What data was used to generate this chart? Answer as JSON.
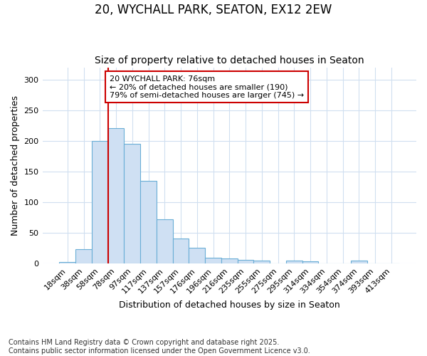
{
  "title": "20, WYCHALL PARK, SEATON, EX12 2EW",
  "subtitle": "Size of property relative to detached houses in Seaton",
  "xlabel": "Distribution of detached houses by size in Seaton",
  "ylabel": "Number of detached properties",
  "bins": [
    "18sqm",
    "38sqm",
    "58sqm",
    "78sqm",
    "97sqm",
    "117sqm",
    "137sqm",
    "157sqm",
    "176sqm",
    "196sqm",
    "216sqm",
    "235sqm",
    "255sqm",
    "275sqm",
    "295sqm",
    "314sqm",
    "334sqm",
    "354sqm",
    "374sqm",
    "393sqm",
    "413sqm"
  ],
  "bar_heights": [
    2,
    23,
    200,
    221,
    195,
    135,
    72,
    41,
    26,
    9,
    8,
    6,
    5,
    0,
    4,
    3,
    0,
    0,
    4,
    0,
    0
  ],
  "bar_color": "#cfe0f3",
  "bar_edge_color": "#6aaed6",
  "vline_color": "#cc0000",
  "annotation_text": "20 WYCHALL PARK: 76sqm\n← 20% of detached houses are smaller (190)\n79% of semi-detached houses are larger (745) →",
  "annotation_box_facecolor": "#ffffff",
  "annotation_box_edgecolor": "#cc0000",
  "ylim": [
    0,
    320
  ],
  "yticks": [
    0,
    50,
    100,
    150,
    200,
    250,
    300
  ],
  "footnote": "Contains HM Land Registry data © Crown copyright and database right 2025.\nContains public sector information licensed under the Open Government Licence v3.0.",
  "bg_color": "#ffffff",
  "grid_color": "#d0dff0",
  "title_fontsize": 12,
  "subtitle_fontsize": 10,
  "axis_label_fontsize": 9,
  "tick_fontsize": 8,
  "annotation_fontsize": 8,
  "footnote_fontsize": 7
}
